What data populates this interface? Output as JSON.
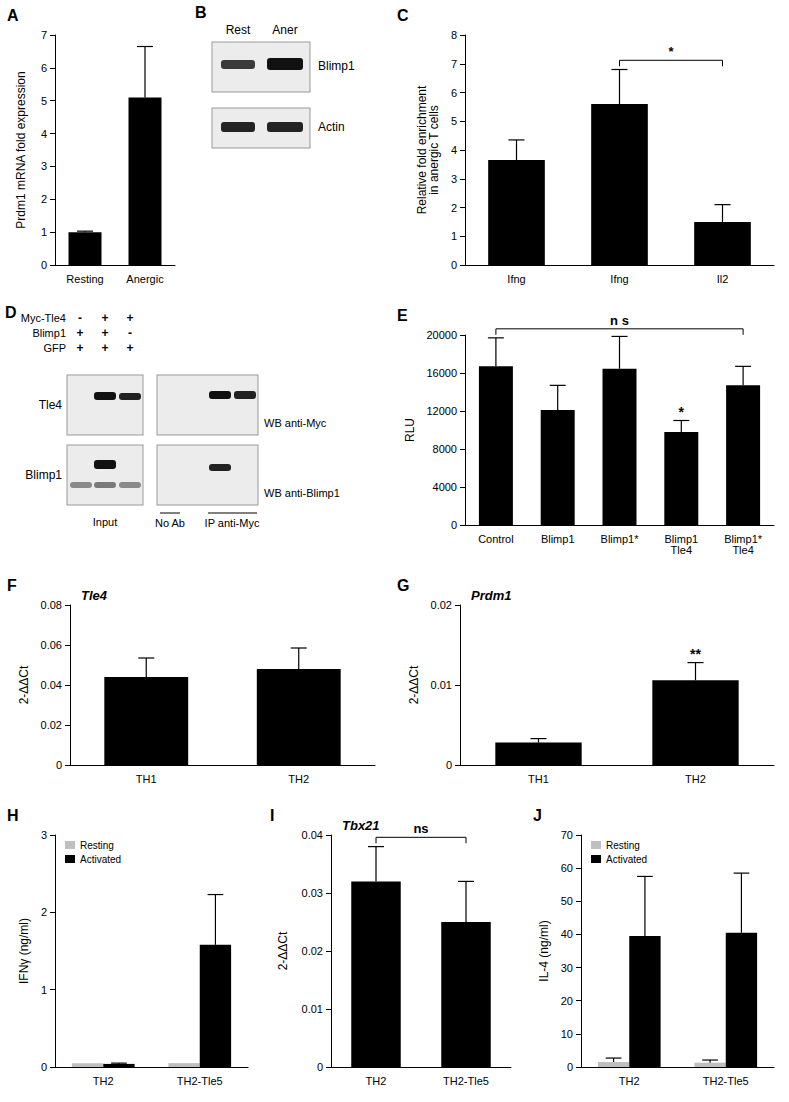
{
  "chart_data": [
    {
      "panel": "A",
      "type": "bar",
      "y_label": "Prdm1 mRNA fold expression",
      "categories": [
        "Resting",
        "Anergic"
      ],
      "values": [
        1.0,
        5.1
      ],
      "errors": [
        0.03,
        1.55
      ],
      "color": "#000000",
      "ylim": [
        0,
        7
      ],
      "yticks": [
        0,
        1,
        2,
        3,
        4,
        5,
        6,
        7
      ]
    },
    {
      "panel": "C",
      "type": "bar",
      "y_label": "Relative fold enrichment\nin anergic T cells",
      "categories": [
        "Ifng",
        "Ifng",
        "Il2"
      ],
      "values": [
        3.65,
        5.6,
        1.5
      ],
      "errors": [
        0.7,
        1.2,
        0.6
      ],
      "color": "#000000",
      "ylim": [
        0,
        8
      ],
      "yticks": [
        0,
        1,
        2,
        3,
        4,
        5,
        6,
        7,
        8
      ],
      "annotations": [
        {
          "text": "*",
          "from": 1,
          "to": 2
        }
      ]
    },
    {
      "panel": "E",
      "type": "bar",
      "y_label": "RLU",
      "categories": [
        "Control",
        "Blimp1",
        "Blimp1*",
        "Blimp1\nTle4",
        "Blimp1*\nTle4"
      ],
      "values": [
        16700,
        12100,
        16450,
        9800,
        14700
      ],
      "errors": [
        3000,
        2600,
        3400,
        1200,
        2000
      ],
      "color": "#000000",
      "ylim": [
        0,
        20000
      ],
      "yticks": [
        0,
        4000,
        8000,
        12000,
        16000,
        20000
      ],
      "annotations": [
        {
          "text": "n s",
          "from": 0,
          "to": 4
        },
        {
          "text": "*",
          "at": 3
        }
      ]
    },
    {
      "panel": "F",
      "type": "bar",
      "title": "Tle4",
      "y_label": "2-ΔΔCt",
      "categories": [
        "TH1",
        "TH2"
      ],
      "values": [
        0.044,
        0.048
      ],
      "errors": [
        0.0095,
        0.0105
      ],
      "color": "#000000",
      "ylim": [
        0,
        0.08
      ],
      "yticks": [
        0,
        0.02,
        0.04,
        0.06,
        0.08
      ]
    },
    {
      "panel": "G",
      "type": "bar",
      "title": "Prdm1",
      "y_label": "2-ΔΔCt",
      "categories": [
        "TH1",
        "TH2"
      ],
      "values": [
        0.0028,
        0.0106
      ],
      "errors": [
        0.0005,
        0.0022
      ],
      "color": "#000000",
      "ylim": [
        0,
        0.02
      ],
      "yticks": [
        0,
        0.01,
        0.02
      ],
      "annotations": [
        {
          "text": "**",
          "at": 1
        }
      ]
    },
    {
      "panel": "H",
      "type": "bar",
      "y_label": "IFNγ (ng/ml)",
      "categories": [
        "TH2",
        "TH2-Tle5"
      ],
      "series": [
        {
          "name": "Resting",
          "color": "#bfbfbf",
          "values": [
            0.05,
            0.05
          ],
          "errors": [
            0,
            0
          ]
        },
        {
          "name": "Activated",
          "color": "#000000",
          "values": [
            0.04,
            1.58
          ],
          "errors": [
            0.01,
            0.65
          ]
        }
      ],
      "ylim": [
        0,
        3
      ],
      "yticks": [
        0,
        1,
        2,
        3
      ],
      "legend": "top-left"
    },
    {
      "panel": "I",
      "type": "bar",
      "title": "Tbx21",
      "y_label": "2-ΔΔCt",
      "categories": [
        "TH2",
        "TH2-Tle5"
      ],
      "values": [
        0.032,
        0.025
      ],
      "errors": [
        0.006,
        0.007
      ],
      "color": "#000000",
      "ylim": [
        0,
        0.04
      ],
      "yticks": [
        0,
        0.01,
        0.02,
        0.03,
        0.04
      ],
      "annotations": [
        {
          "text": "ns",
          "from": 0,
          "to": 1
        }
      ]
    },
    {
      "panel": "J",
      "type": "bar",
      "y_label": "IL-4 (ng/ml)",
      "categories": [
        "TH2",
        "TH2-Tle5"
      ],
      "series": [
        {
          "name": "Resting",
          "color": "#bfbfbf",
          "values": [
            1.5,
            1.3
          ],
          "errors": [
            1.2,
            0.8
          ]
        },
        {
          "name": "Activated",
          "color": "#000000",
          "values": [
            39.5,
            40.5
          ],
          "errors": [
            18,
            18
          ]
        }
      ],
      "ylim": [
        0,
        70
      ],
      "yticks": [
        0,
        10,
        20,
        30,
        40,
        50,
        60,
        70
      ],
      "legend": "top-left"
    }
  ],
  "blots": [
    {
      "panel": "B",
      "columns": [
        "Rest",
        "Aner"
      ],
      "rows": [
        "Blimp1",
        "Actin"
      ]
    },
    {
      "panel": "D",
      "conditions": [
        {
          "label": "Myc-Tle4",
          "signs": [
            "-",
            "+",
            "+"
          ]
        },
        {
          "label": "Blimp1",
          "signs": [
            "+",
            "+",
            "-"
          ]
        },
        {
          "label": "GFP",
          "signs": [
            "+",
            "+",
            "+"
          ]
        }
      ],
      "rows": [
        "Tle4",
        "Blimp1"
      ],
      "wb": [
        "WB anti-Myc",
        "WB anti-Blimp1"
      ],
      "groups": [
        "Input",
        "No Ab",
        "IP anti-Myc"
      ]
    }
  ]
}
